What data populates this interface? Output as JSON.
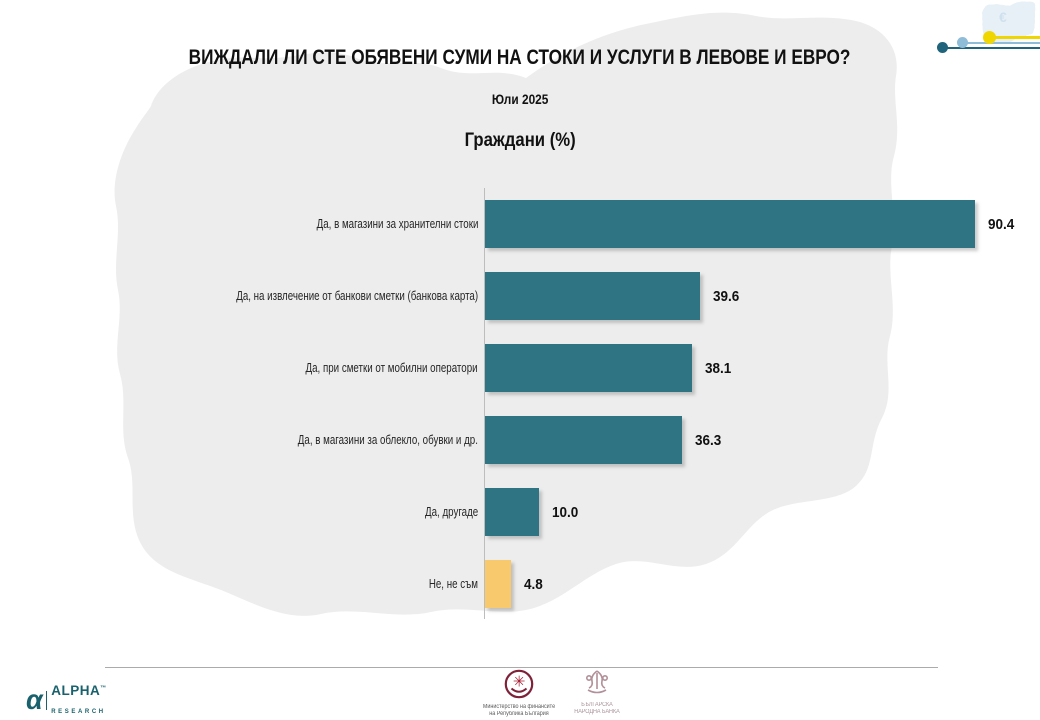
{
  "title": "ВИЖДАЛИ ЛИ СТЕ ОБЯВЕНИ СУМИ НА СТОКИ И УСЛУГИ В ЛЕВОВЕ И ЕВРО?",
  "subtitle": "Юли 2025",
  "chart_heading": "Граждани (%)",
  "chart_data": {
    "type": "bar",
    "orientation": "horizontal",
    "title": "ВИЖДАЛИ ЛИ СТЕ ОБЯВЕНИ СУМИ НА СТОКИ И УСЛУГИ В ЛЕВОВЕ И ЕВРО?",
    "subtitle": "Юли 2025",
    "group_label": "Граждани (%)",
    "categories": [
      "Да, в магазини за хранителни стоки",
      "Да, на извлечение от банкови сметки (банкова карта)",
      "Да, при сметки от мобилни оператори",
      "Да, в магазини за облекло, обувки и др.",
      "Да, другаде",
      "Не, не съм"
    ],
    "values": [
      90.4,
      39.6,
      38.1,
      36.3,
      10.0,
      4.8
    ],
    "value_labels": [
      "90.4",
      "39.6",
      "38.1",
      "36.3",
      "10.0",
      "4.8"
    ],
    "bar_colors": [
      "#2f7483",
      "#2f7483",
      "#2f7483",
      "#2f7483",
      "#2f7483",
      "#f9ca6d"
    ],
    "xlim": [
      0,
      100
    ],
    "grid": false,
    "legend": false
  },
  "colors": {
    "bar_teal": "#2f7483",
    "bar_yellow": "#f9ca6d",
    "map_gray": "#ededed",
    "mini_map_blue": "#e7f0f7",
    "decor_yellow": "#f0d600",
    "decor_light_blue": "#8fbcd6",
    "decor_dark_teal": "#1f647a",
    "alpha_teal": "#19616c",
    "ministry_red": "#a62036",
    "bnb_mauve": "#b29099"
  },
  "decor": {
    "euro_symbol": "€"
  },
  "footer": {
    "alpha": {
      "glyph": "α",
      "word": "ALPHA",
      "tm": "™",
      "sub": "RESEARCH"
    },
    "ministry": {
      "line1": "Министерство на финансите",
      "line2": "на Република България"
    },
    "bnb": {
      "line1": "БЪЛГАРСКА",
      "line2": "НАРОДНА БАНКА"
    }
  }
}
